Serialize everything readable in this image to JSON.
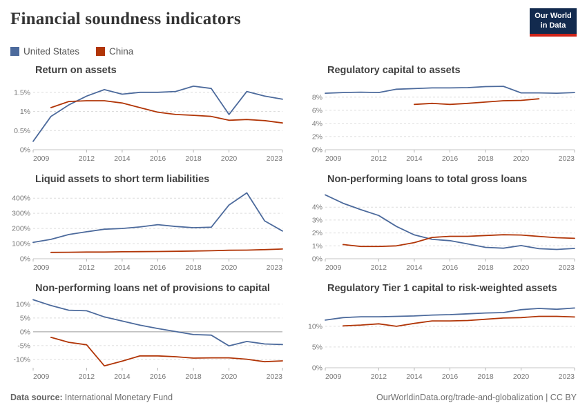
{
  "header": {
    "title": "Financial soundness indicators",
    "logo": {
      "line1": "Our World",
      "line2": "in Data",
      "bg": "#122A4E",
      "stripe": "#CF2318"
    }
  },
  "legend": [
    {
      "label": "United States",
      "color": "#4C6A9C"
    },
    {
      "label": "China",
      "color": "#B13507"
    }
  ],
  "footer": {
    "source_label": "Data source:",
    "source_value": "International Monetary Fund",
    "attribution": "OurWorldinData.org/trade-and-globalization | CC BY"
  },
  "chart_data": [
    {
      "type": "line",
      "title": "Return on assets",
      "xlim": [
        2009,
        2023
      ],
      "x_ticks": [
        2009,
        2012,
        2014,
        2016,
        2018,
        2020,
        2023
      ],
      "ylim": [
        0,
        1.82
      ],
      "y_ticks": [
        0,
        0.5,
        1,
        1.5
      ],
      "y_tick_labels": [
        "0%",
        "0.5%",
        "1%",
        "1.5%"
      ],
      "series": [
        {
          "name": "United States",
          "color": "#4C6A9C",
          "x_start": 2009,
          "values": [
            0.22,
            0.87,
            1.17,
            1.4,
            1.57,
            1.45,
            1.5,
            1.5,
            1.52,
            1.66,
            1.6,
            0.92,
            1.52,
            1.4,
            1.32
          ]
        },
        {
          "name": "China",
          "color": "#B13507",
          "x_start": 2010,
          "values": [
            1.1,
            1.26,
            1.28,
            1.28,
            1.22,
            1.1,
            0.98,
            0.92,
            0.9,
            0.87,
            0.77,
            0.79,
            0.76,
            0.7
          ]
        }
      ]
    },
    {
      "type": "line",
      "title": "Regulatory capital to assets",
      "xlim": [
        2009,
        2023
      ],
      "x_ticks": [
        2009,
        2012,
        2014,
        2016,
        2018,
        2020,
        2023
      ],
      "ylim": [
        0,
        10.6
      ],
      "y_ticks": [
        0,
        2,
        4,
        6,
        8
      ],
      "y_tick_labels": [
        "0%",
        "2%",
        "4%",
        "6%",
        "8%"
      ],
      "series": [
        {
          "name": "United States",
          "color": "#4C6A9C",
          "x_start": 2009,
          "values": [
            8.6,
            8.7,
            8.75,
            8.7,
            9.2,
            9.3,
            9.4,
            9.4,
            9.45,
            9.6,
            9.65,
            8.65,
            8.65,
            8.6,
            8.7
          ]
        },
        {
          "name": "China",
          "color": "#B13507",
          "x_start": 2014,
          "values": [
            6.9,
            7.05,
            6.9,
            7.05,
            7.25,
            7.45,
            7.5,
            7.75
          ]
        }
      ]
    },
    {
      "type": "line",
      "title": "Liquid assets to short term liabilities",
      "xlim": [
        2009,
        2023
      ],
      "x_ticks": [
        2009,
        2012,
        2014,
        2016,
        2018,
        2020,
        2023
      ],
      "ylim": [
        0,
        460
      ],
      "y_ticks": [
        0,
        100,
        200,
        300,
        400
      ],
      "y_tick_labels": [
        "0%",
        "100%",
        "200%",
        "300%",
        "400%"
      ],
      "series": [
        {
          "name": "United States",
          "color": "#4C6A9C",
          "x_start": 2009,
          "values": [
            108,
            128,
            160,
            178,
            195,
            200,
            210,
            225,
            213,
            205,
            208,
            355,
            435,
            250,
            183
          ]
        },
        {
          "name": "China",
          "color": "#B13507",
          "x_start": 2010,
          "values": [
            42,
            43,
            44,
            44,
            46,
            47,
            48,
            49,
            51,
            53,
            56,
            57,
            60,
            64
          ]
        }
      ]
    },
    {
      "type": "line",
      "title": "Non-performing loans to total gross loans",
      "xlim": [
        2009,
        2023
      ],
      "x_ticks": [
        2009,
        2012,
        2014,
        2016,
        2018,
        2020,
        2023
      ],
      "ylim": [
        0,
        5.4
      ],
      "y_ticks": [
        0,
        1,
        2,
        3,
        4
      ],
      "y_tick_labels": [
        "0%",
        "1%",
        "2%",
        "3%",
        "4%"
      ],
      "series": [
        {
          "name": "United States",
          "color": "#4C6A9C",
          "x_start": 2009,
          "values": [
            4.95,
            4.3,
            3.8,
            3.35,
            2.5,
            1.85,
            1.5,
            1.4,
            1.15,
            0.88,
            0.82,
            1.02,
            0.78,
            0.72,
            0.8
          ]
        },
        {
          "name": "China",
          "color": "#B13507",
          "x_start": 2010,
          "values": [
            1.1,
            0.95,
            0.95,
            1.0,
            1.25,
            1.65,
            1.74,
            1.74,
            1.8,
            1.86,
            1.84,
            1.73,
            1.63,
            1.58
          ]
        }
      ]
    },
    {
      "type": "line",
      "title": "Non-performing loans net of provisions to capital",
      "xlim": [
        2009,
        2023
      ],
      "x_ticks": [
        2009,
        2012,
        2014,
        2016,
        2018,
        2020,
        2023
      ],
      "ylim": [
        -13,
        12.2
      ],
      "y_ticks": [
        -10,
        -5,
        0,
        5,
        10
      ],
      "y_tick_labels": [
        "-10%",
        "-5%",
        "0%",
        "5%",
        "10%"
      ],
      "series": [
        {
          "name": "United States",
          "color": "#4C6A9C",
          "x_start": 2009,
          "values": [
            11.6,
            9.5,
            7.8,
            7.6,
            5.4,
            3.9,
            2.4,
            1.2,
            0.1,
            -1.0,
            -1.2,
            -5.1,
            -3.5,
            -4.4,
            -4.6
          ]
        },
        {
          "name": "China",
          "color": "#B13507",
          "x_start": 2010,
          "values": [
            -2.0,
            -3.8,
            -4.7,
            -12.3,
            -10.6,
            -8.7,
            -8.7,
            -9.0,
            -9.5,
            -9.4,
            -9.4,
            -9.9,
            -10.8,
            -10.5
          ]
        }
      ]
    },
    {
      "type": "line",
      "title": "Regulatory Tier 1 capital to risk-weighted assets",
      "xlim": [
        2009,
        2023
      ],
      "x_ticks": [
        2009,
        2012,
        2014,
        2016,
        2018,
        2020,
        2023
      ],
      "ylim": [
        0,
        16.8
      ],
      "y_ticks": [
        0,
        5,
        10
      ],
      "y_tick_labels": [
        "0%",
        "5%",
        "10%"
      ],
      "series": [
        {
          "name": "United States",
          "color": "#4C6A9C",
          "x_start": 2009,
          "values": [
            11.5,
            12.1,
            12.3,
            12.3,
            12.4,
            12.5,
            12.7,
            12.8,
            13.0,
            13.2,
            13.3,
            14.0,
            14.3,
            14.1,
            14.4
          ]
        },
        {
          "name": "China",
          "color": "#B13507",
          "x_start": 2010,
          "values": [
            10.1,
            10.3,
            10.6,
            10.0,
            10.7,
            11.3,
            11.3,
            11.4,
            11.7,
            12.0,
            12.1,
            12.4,
            12.4,
            12.25
          ]
        }
      ]
    }
  ]
}
